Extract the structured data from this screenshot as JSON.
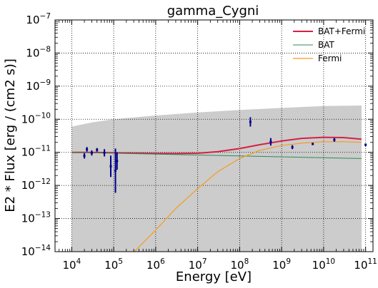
{
  "chart_data": {
    "type": "line",
    "title": "gamma_Cygni",
    "xlabel": "Energy [eV]",
    "ylabel": "E2 * Flux [erg / (cm2 s)]",
    "xscale": "log",
    "yscale": "log",
    "xlim": [
      4000,
      150000000000
    ],
    "ylim": [
      1e-14,
      1e-07
    ],
    "grid": true,
    "legend_position": "top-right",
    "x_tick_labels": [
      {
        "base": "10",
        "exp": "4",
        "value": 10000
      },
      {
        "base": "10",
        "exp": "5",
        "value": 100000
      },
      {
        "base": "10",
        "exp": "6",
        "value": 1000000
      },
      {
        "base": "10",
        "exp": "7",
        "value": 10000000
      },
      {
        "base": "10",
        "exp": "8",
        "value": 100000000
      },
      {
        "base": "10",
        "exp": "9",
        "value": 1000000000
      },
      {
        "base": "10",
        "exp": "10",
        "value": 10000000000
      },
      {
        "base": "10",
        "exp": "11",
        "value": 100000000000
      }
    ],
    "y_tick_labels": [
      {
        "base": "10",
        "exp": "−14",
        "value": 1e-14
      },
      {
        "base": "10",
        "exp": "−13",
        "value": 1e-13
      },
      {
        "base": "10",
        "exp": "−12",
        "value": 1e-12
      },
      {
        "base": "10",
        "exp": "−11",
        "value": 1e-11
      },
      {
        "base": "10",
        "exp": "−10",
        "value": 1e-10
      },
      {
        "base": "10",
        "exp": "−9",
        "value": 1e-09
      },
      {
        "base": "10",
        "exp": "−8",
        "value": 1e-08
      },
      {
        "base": "10",
        "exp": "−7",
        "value": 1e-07
      }
    ],
    "uncertainty_band": {
      "color": "#cccccc",
      "x": [
        10000,
        30000,
        100000,
        1000000,
        10000000,
        100000000,
        1000000000,
        10000000000,
        80000000000
      ],
      "upper": [
        6e-11,
        8e-11,
        1e-10,
        1.3e-10,
        1.6e-10,
        1.9e-10,
        2.2e-10,
        2.5e-10,
        2.6e-10
      ],
      "lower": [
        1e-14,
        1e-14,
        1e-14,
        1e-14,
        1e-14,
        1e-14,
        1e-14,
        1e-14,
        1e-14
      ]
    },
    "series": [
      {
        "name": "BAT+Fermi",
        "color": "#d62045",
        "width": 2,
        "x": [
          10000,
          30000,
          100000,
          300000,
          1000000,
          3000000,
          10000000,
          30000000,
          100000000,
          300000000,
          1000000000,
          3000000000,
          10000000000,
          30000000000,
          80000000000
        ],
        "y": [
          1e-11,
          1e-11,
          9.7e-12,
          9.5e-12,
          9.3e-12,
          9.2e-12,
          9.4e-12,
          1.05e-11,
          1.3e-11,
          1.7e-11,
          2.2e-11,
          2.65e-11,
          2.85e-11,
          2.8e-11,
          2.5e-11
        ]
      },
      {
        "name": "BAT",
        "color": "#2e8b57",
        "width": 1,
        "x": [
          10000,
          80000000000
        ],
        "y": [
          1e-11,
          6.5e-12
        ]
      },
      {
        "name": "Fermi",
        "color": "#f59a1f",
        "width": 1.2,
        "x": [
          310000,
          1000000,
          3000000,
          10000000,
          30000000,
          100000000,
          300000000,
          1000000000,
          3000000000,
          10000000000,
          30000000000,
          80000000000
        ],
        "y": [
          1e-14,
          4.5e-14,
          2e-13,
          8e-13,
          2.6e-12,
          6.5e-12,
          1.15e-11,
          1.6e-11,
          1.9e-11,
          2.1e-11,
          2.1e-11,
          2e-11
        ]
      }
    ],
    "data_points": {
      "color": "#00008b",
      "points": [
        {
          "x": 20000,
          "lo": 6.5e-12,
          "hi": 9.5e-12
        },
        {
          "x": 23000,
          "lo": 1.05e-11,
          "hi": 1.45e-11
        },
        {
          "x": 30000,
          "lo": 8e-12,
          "hi": 1.15e-11
        },
        {
          "x": 40000,
          "lo": 1.05e-11,
          "hi": 1.35e-11
        },
        {
          "x": 60000,
          "lo": 7.5e-12,
          "hi": 1.25e-11
        },
        {
          "x": 85000,
          "lo": 1.8e-12,
          "hi": 8e-12
        },
        {
          "x": 110000,
          "lo": 6e-13,
          "hi": 1.3e-11
        },
        {
          "x": 120000,
          "lo": 3e-12,
          "hi": 1e-11
        },
        {
          "x": 180000000,
          "lo": 6e-11,
          "hi": 1.15e-10
        },
        {
          "x": 550000000,
          "lo": 1.6e-11,
          "hi": 2.7e-11
        },
        {
          "x": 1800000000,
          "lo": 1.25e-11,
          "hi": 1.65e-11
        },
        {
          "x": 5500000000,
          "lo": 1.65e-11,
          "hi": 1.95e-11
        },
        {
          "x": 18000000000,
          "lo": 2.1e-11,
          "hi": 2.7e-11
        },
        {
          "x": 100000000000,
          "lo": 1.55e-11,
          "hi": 1.85e-11
        }
      ]
    }
  }
}
